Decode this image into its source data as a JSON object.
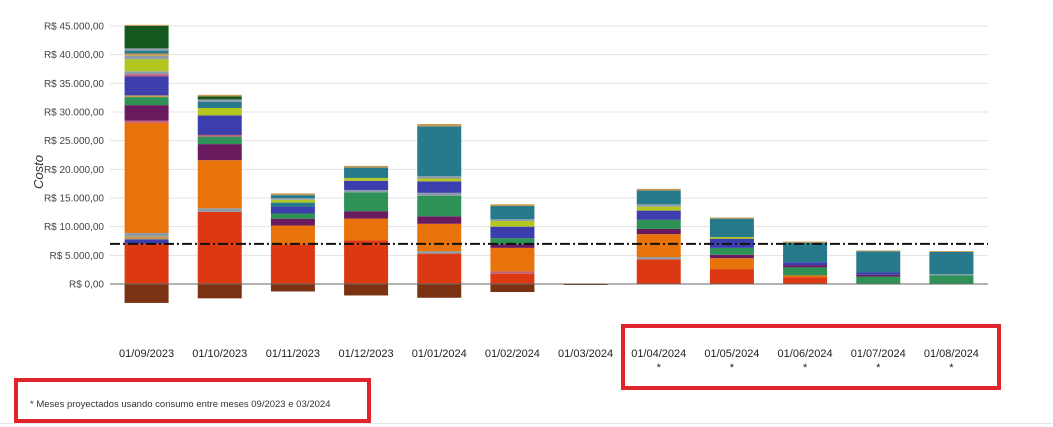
{
  "chart_data": {
    "type": "bar",
    "stacked": true,
    "ylabel": "Costo",
    "ylim": [
      -3500,
      46000
    ],
    "yticks": [
      "R$ 0,00",
      "R$ 5.000,00",
      "R$ 10.000,00",
      "R$ 15.000,00",
      "R$ 20.000,00",
      "R$ 25.000,00",
      "R$ 30.000,00",
      "R$ 35.000,00",
      "R$ 40.000,00",
      "R$ 45.000,00"
    ],
    "ytick_values": [
      0,
      5000,
      10000,
      15000,
      20000,
      25000,
      30000,
      35000,
      40000,
      45000
    ],
    "grid": true,
    "categories": [
      "01/09/2023",
      "01/10/2023",
      "01/11/2023",
      "01/12/2023",
      "01/01/2024",
      "01/02/2024",
      "01/03/2024",
      "01/04/2024",
      "01/05/2024",
      "01/06/2024",
      "01/07/2024",
      "01/08/2024"
    ],
    "projected_markers": [
      "",
      "",
      "",
      "",
      "",
      "",
      "",
      "*",
      "*",
      "*",
      "*",
      "*"
    ],
    "reference_line": 7000,
    "palette": {
      "brown": "#7a3212",
      "red": "#dc3912",
      "orange": "#e8730a",
      "purple": "#6a1b5f",
      "green": "#2e9156",
      "blue": "#3b3eac",
      "lime": "#b3c720",
      "teal": "#267a8c",
      "darkgreen": "#145a20",
      "gray": "#8c9cab",
      "tan": "#c49a52",
      "pink": "#c25f7a"
    },
    "stacks": [
      {
        "neg": [
          {
            "c": "brown",
            "v": 3300
          }
        ],
        "pos": [
          {
            "c": "red",
            "v": 7000
          },
          {
            "c": "blue",
            "v": 800
          },
          {
            "c": "tan",
            "v": 500
          },
          {
            "c": "gray",
            "v": 600
          },
          {
            "c": "orange",
            "v": 19200
          },
          {
            "c": "pink",
            "v": 400
          },
          {
            "c": "purple",
            "v": 2700
          },
          {
            "c": "green",
            "v": 1400
          },
          {
            "c": "tan",
            "v": 300
          },
          {
            "c": "blue",
            "v": 600
          },
          {
            "c": "blue",
            "v": 2700
          },
          {
            "c": "pink",
            "v": 400
          },
          {
            "c": "gray",
            "v": 500
          },
          {
            "c": "lime",
            "v": 2100
          },
          {
            "c": "gray",
            "v": 600
          },
          {
            "c": "tan",
            "v": 400
          },
          {
            "c": "teal",
            "v": 500
          },
          {
            "c": "gray",
            "v": 400
          },
          {
            "c": "darkgreen",
            "v": 3900
          },
          {
            "c": "tan",
            "v": 200
          }
        ]
      },
      {
        "neg": [
          {
            "c": "brown",
            "v": 2500
          }
        ],
        "pos": [
          {
            "c": "red",
            "v": 12600
          },
          {
            "c": "gray",
            "v": 600
          },
          {
            "c": "orange",
            "v": 8400
          },
          {
            "c": "purple",
            "v": 2800
          },
          {
            "c": "green",
            "v": 1300
          },
          {
            "c": "pink",
            "v": 300
          },
          {
            "c": "blue",
            "v": 3400
          },
          {
            "c": "lime",
            "v": 1300
          },
          {
            "c": "teal",
            "v": 1100
          },
          {
            "c": "gray",
            "v": 400
          },
          {
            "c": "darkgreen",
            "v": 500
          },
          {
            "c": "tan",
            "v": 300
          }
        ]
      },
      {
        "neg": [
          {
            "c": "brown",
            "v": 1300
          }
        ],
        "pos": [
          {
            "c": "red",
            "v": 6900
          },
          {
            "c": "orange",
            "v": 3300
          },
          {
            "c": "purple",
            "v": 1200
          },
          {
            "c": "green",
            "v": 900
          },
          {
            "c": "blue",
            "v": 1200
          },
          {
            "c": "teal",
            "v": 700
          },
          {
            "c": "lime",
            "v": 500
          },
          {
            "c": "gray",
            "v": 300
          },
          {
            "c": "teal",
            "v": 500
          },
          {
            "c": "tan",
            "v": 300
          }
        ]
      },
      {
        "neg": [
          {
            "c": "brown",
            "v": 2000
          }
        ],
        "pos": [
          {
            "c": "red",
            "v": 7600
          },
          {
            "c": "orange",
            "v": 3800
          },
          {
            "c": "purple",
            "v": 1300
          },
          {
            "c": "green",
            "v": 3300
          },
          {
            "c": "gray",
            "v": 400
          },
          {
            "c": "blue",
            "v": 1600
          },
          {
            "c": "lime",
            "v": 500
          },
          {
            "c": "teal",
            "v": 1800
          },
          {
            "c": "tan",
            "v": 300
          }
        ]
      },
      {
        "neg": [
          {
            "c": "brown",
            "v": 2400
          }
        ],
        "pos": [
          {
            "c": "red",
            "v": 5300
          },
          {
            "c": "gray",
            "v": 400
          },
          {
            "c": "orange",
            "v": 4800
          },
          {
            "c": "purple",
            "v": 1300
          },
          {
            "c": "green",
            "v": 3600
          },
          {
            "c": "gray",
            "v": 500
          },
          {
            "c": "blue",
            "v": 2000
          },
          {
            "c": "lime",
            "v": 500
          },
          {
            "c": "gray",
            "v": 400
          },
          {
            "c": "teal",
            "v": 8700
          },
          {
            "c": "tan",
            "v": 400
          }
        ]
      },
      {
        "neg": [
          {
            "c": "brown",
            "v": 1400
          }
        ],
        "pos": [
          {
            "c": "red",
            "v": 1800
          },
          {
            "c": "pink",
            "v": 400
          },
          {
            "c": "orange",
            "v": 4100
          },
          {
            "c": "purple",
            "v": 600
          },
          {
            "c": "green",
            "v": 1100
          },
          {
            "c": "blue",
            "v": 2000
          },
          {
            "c": "lime",
            "v": 1000
          },
          {
            "c": "gray",
            "v": 300
          },
          {
            "c": "teal",
            "v": 2300
          },
          {
            "c": "tan",
            "v": 300
          }
        ]
      },
      {
        "neg": [
          {
            "c": "brown",
            "v": 150
          }
        ],
        "pos": []
      },
      {
        "neg": [],
        "pos": [
          {
            "c": "red",
            "v": 4300
          },
          {
            "c": "gray",
            "v": 400
          },
          {
            "c": "orange",
            "v": 4000
          },
          {
            "c": "purple",
            "v": 900
          },
          {
            "c": "green",
            "v": 1600
          },
          {
            "c": "blue",
            "v": 1600
          },
          {
            "c": "lime",
            "v": 700
          },
          {
            "c": "gray",
            "v": 400
          },
          {
            "c": "teal",
            "v": 2400
          },
          {
            "c": "tan",
            "v": 300
          }
        ]
      },
      {
        "neg": [],
        "pos": [
          {
            "c": "red",
            "v": 2600
          },
          {
            "c": "orange",
            "v": 1900
          },
          {
            "c": "purple",
            "v": 600
          },
          {
            "c": "green",
            "v": 1200
          },
          {
            "c": "blue",
            "v": 1600
          },
          {
            "c": "lime",
            "v": 300
          },
          {
            "c": "teal",
            "v": 3200
          },
          {
            "c": "tan",
            "v": 200
          }
        ]
      },
      {
        "neg": [],
        "pos": [
          {
            "c": "red",
            "v": 1200
          },
          {
            "c": "orange",
            "v": 300
          },
          {
            "c": "green",
            "v": 1400
          },
          {
            "c": "purple",
            "v": 400
          },
          {
            "c": "blue",
            "v": 500
          },
          {
            "c": "teal",
            "v": 3400
          },
          {
            "c": "tan",
            "v": 200
          }
        ]
      },
      {
        "neg": [],
        "pos": [
          {
            "c": "green",
            "v": 1300
          },
          {
            "c": "purple",
            "v": 300
          },
          {
            "c": "blue",
            "v": 400
          },
          {
            "c": "teal",
            "v": 3700
          },
          {
            "c": "tan",
            "v": 150
          }
        ]
      },
      {
        "neg": [],
        "pos": [
          {
            "c": "green",
            "v": 1500
          },
          {
            "c": "gray",
            "v": 200
          },
          {
            "c": "teal",
            "v": 3900
          },
          {
            "c": "tan",
            "v": 150
          }
        ]
      }
    ]
  },
  "footnote": "* Meses proyectados usando consumo entre meses 09/2023 e 03/2024",
  "highlight_color": "#e0242b"
}
